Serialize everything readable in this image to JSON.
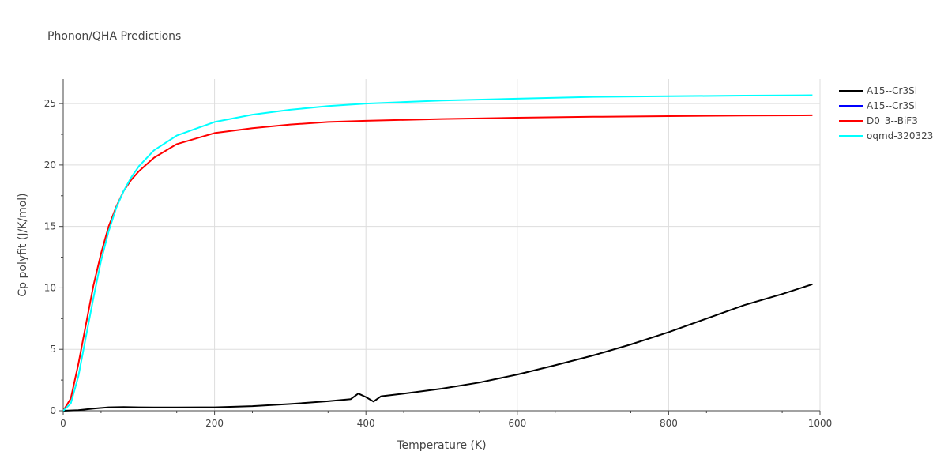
{
  "chart_data": {
    "type": "line",
    "title": "Phonon/QHA Predictions",
    "xlabel": "Temperature (K)",
    "ylabel": "Cp polyfit (J/K/mol)",
    "xlim": [
      0,
      1000
    ],
    "ylim": [
      0,
      27
    ],
    "xticks": [
      0,
      200,
      400,
      600,
      800,
      1000
    ],
    "yticks": [
      0,
      5,
      10,
      15,
      20,
      25
    ],
    "xtick_labels": [
      "0",
      "200",
      "400",
      "600",
      "800",
      "1000"
    ],
    "ytick_labels": [
      "0",
      "5",
      "10",
      "15",
      "20",
      "25"
    ],
    "grid": true,
    "legend_position": "top-right",
    "series": [
      {
        "name": "A15--Cr3Si",
        "color": "#000000",
        "x": [
          0,
          20,
          40,
          60,
          80,
          100,
          120,
          150,
          200,
          250,
          300,
          350,
          380,
          390,
          400,
          410,
          420,
          450,
          500,
          550,
          600,
          650,
          700,
          750,
          800,
          850,
          900,
          950,
          990
        ],
        "y": [
          0,
          0.05,
          0.18,
          0.28,
          0.3,
          0.28,
          0.27,
          0.27,
          0.28,
          0.38,
          0.55,
          0.78,
          0.95,
          1.4,
          1.12,
          0.75,
          1.18,
          1.4,
          1.8,
          2.3,
          2.95,
          3.7,
          4.5,
          5.4,
          6.4,
          7.5,
          8.6,
          9.5,
          10.3
        ]
      },
      {
        "name": "A15--Cr3Si",
        "color": "#0000ff",
        "x": [],
        "y": []
      },
      {
        "name": "D0_3--BiF3",
        "color": "#ff0000",
        "x": [
          0,
          10,
          20,
          30,
          40,
          50,
          60,
          70,
          80,
          90,
          100,
          120,
          150,
          200,
          250,
          300,
          350,
          400,
          500,
          600,
          700,
          800,
          900,
          990
        ],
        "y": [
          0,
          1.0,
          3.8,
          7.0,
          10.2,
          12.8,
          15.0,
          16.6,
          17.9,
          18.8,
          19.5,
          20.6,
          21.7,
          22.6,
          23.0,
          23.3,
          23.5,
          23.6,
          23.75,
          23.85,
          23.93,
          23.98,
          24.03,
          24.05
        ]
      },
      {
        "name": "oqmd-320323",
        "color": "#00ffff",
        "x": [
          0,
          10,
          20,
          30,
          40,
          50,
          60,
          70,
          80,
          90,
          100,
          120,
          150,
          200,
          250,
          300,
          350,
          400,
          500,
          600,
          700,
          800,
          900,
          990
        ],
        "y": [
          0,
          0.6,
          2.8,
          6.0,
          9.2,
          12.2,
          14.6,
          16.5,
          17.9,
          19.0,
          19.9,
          21.2,
          22.4,
          23.5,
          24.1,
          24.5,
          24.8,
          25.0,
          25.25,
          25.4,
          25.55,
          25.6,
          25.65,
          25.68
        ]
      }
    ]
  }
}
